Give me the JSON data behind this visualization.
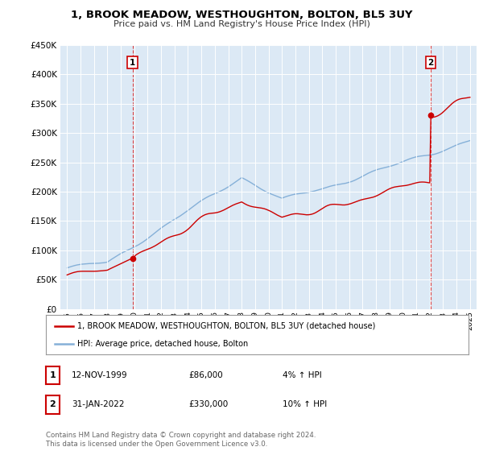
{
  "title": "1, BROOK MEADOW, WESTHOUGHTON, BOLTON, BL5 3UY",
  "subtitle": "Price paid vs. HM Land Registry's House Price Index (HPI)",
  "ylim": [
    0,
    450000
  ],
  "yticks": [
    0,
    50000,
    100000,
    150000,
    200000,
    250000,
    300000,
    350000,
    400000,
    450000
  ],
  "ytick_labels": [
    "£0",
    "£50K",
    "£100K",
    "£150K",
    "£200K",
    "£250K",
    "£300K",
    "£350K",
    "£400K",
    "£450K"
  ],
  "background_color": "#ffffff",
  "plot_bg_color": "#dce9f5",
  "grid_color": "#ffffff",
  "hpi_color": "#85b0d8",
  "price_color": "#cc0000",
  "marker_color": "#cc0000",
  "vline_color": "#dd4444",
  "sale1_year": 1999.87,
  "sale1_value": 86000,
  "sale2_year": 2022.08,
  "sale2_value": 330000,
  "legend_line1": "1, BROOK MEADOW, WESTHOUGHTON, BOLTON, BL5 3UY (detached house)",
  "legend_line2": "HPI: Average price, detached house, Bolton",
  "table_row1": [
    "1",
    "12-NOV-1999",
    "£86,000",
    "4% ↑ HPI"
  ],
  "table_row2": [
    "2",
    "31-JAN-2022",
    "£330,000",
    "10% ↑ HPI"
  ],
  "footer": "Contains HM Land Registry data © Crown copyright and database right 2024.\nThis data is licensed under the Open Government Licence v3.0.",
  "xlim_left": 1994.5,
  "xlim_right": 2025.5
}
